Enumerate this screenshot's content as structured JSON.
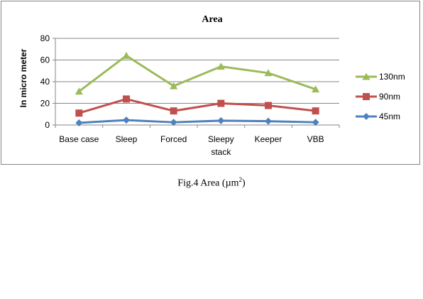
{
  "chart_data": {
    "type": "line",
    "title": "Area",
    "xlabel": "",
    "ylabel": "In micro meter",
    "ylim": [
      0,
      80
    ],
    "yticks": [
      0,
      20,
      40,
      60,
      80
    ],
    "grid": true,
    "legend_position": "right",
    "categories": [
      [
        "Base case"
      ],
      [
        "Sleep"
      ],
      [
        "Forced"
      ],
      [
        "Sleepy",
        "stack"
      ],
      [
        "Keeper"
      ],
      [
        "VBB"
      ]
    ],
    "series": [
      {
        "name": "130nm",
        "values": [
          31,
          64,
          36,
          54,
          48,
          33
        ],
        "color": "#9BBB59",
        "marker": "triangle"
      },
      {
        "name": "90nm",
        "values": [
          11,
          24,
          13,
          20,
          18,
          13
        ],
        "color": "#C0504D",
        "marker": "square"
      },
      {
        "name": "45nm",
        "values": [
          2,
          4.5,
          2.5,
          4,
          3.5,
          2.5
        ],
        "color": "#4F81BD",
        "marker": "diamond"
      }
    ]
  },
  "caption": {
    "prefix": "Fig.4 Area (µm",
    "superscript": "2",
    "suffix": ")"
  }
}
